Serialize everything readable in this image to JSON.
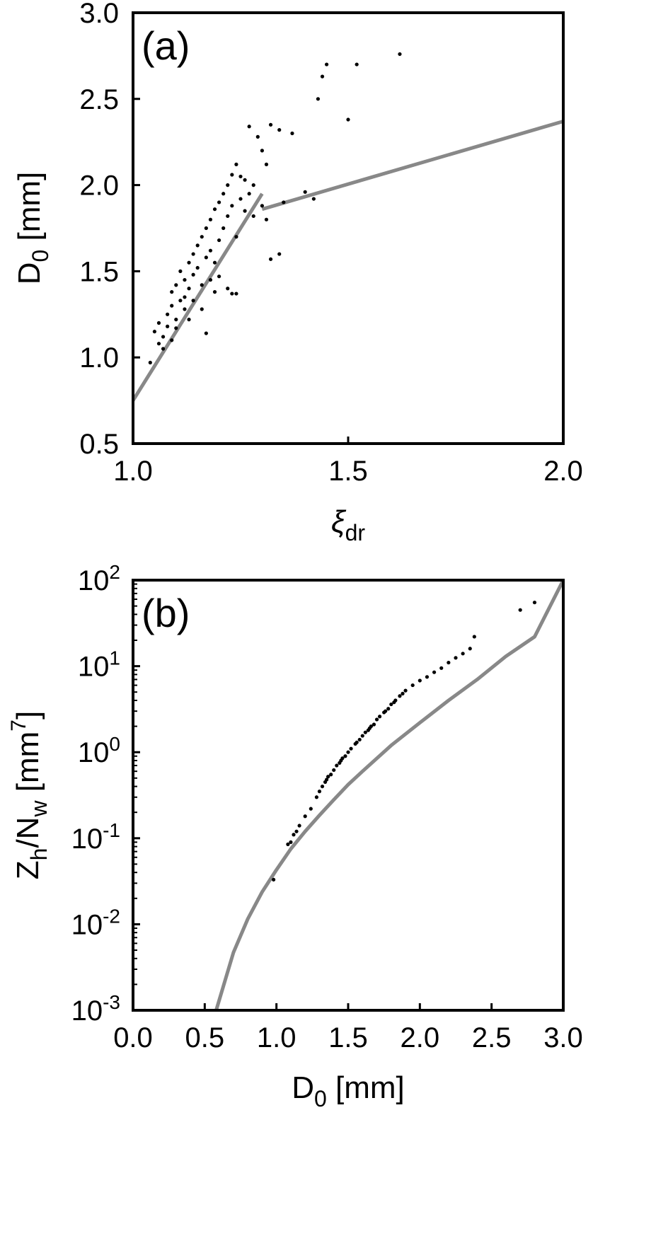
{
  "chart_data": [
    {
      "type": "scatter",
      "panel_label": "(a)",
      "xlabel": "ξdr",
      "xlabel_main": "ξ",
      "xlabel_sub": "dr",
      "ylabel": "D0 [mm]",
      "ylabel_main": "D",
      "ylabel_sub": "0",
      "ylabel_rest": " [mm]",
      "xlim": [
        1.0,
        2.0
      ],
      "ylim": [
        0.5,
        3.0
      ],
      "x_ticks": [
        1.0,
        1.5,
        2.0
      ],
      "x_tick_labels": [
        "1.0",
        "1.5",
        "2.0"
      ],
      "y_ticks": [
        0.5,
        1.0,
        1.5,
        2.0,
        2.5,
        3.0
      ],
      "y_tick_labels": [
        "0.5",
        "1.0",
        "1.5",
        "2.0",
        "2.5",
        "3.0"
      ],
      "grid": false,
      "fit_lines": [
        {
          "x": [
            1.0,
            1.3
          ],
          "y": [
            0.75,
            1.95
          ],
          "color": "#888888"
        },
        {
          "x": [
            1.3,
            2.0
          ],
          "y": [
            1.86,
            2.37
          ],
          "color": "#888888"
        }
      ],
      "points": [
        [
          1.04,
          0.97
        ],
        [
          1.06,
          1.08
        ],
        [
          1.07,
          1.12
        ],
        [
          1.08,
          1.18
        ],
        [
          1.08,
          1.25
        ],
        [
          1.09,
          1.3
        ],
        [
          1.09,
          1.38
        ],
        [
          1.1,
          1.42
        ],
        [
          1.1,
          1.22
        ],
        [
          1.11,
          1.5
        ],
        [
          1.11,
          1.33
        ],
        [
          1.12,
          1.28
        ],
        [
          1.12,
          1.45
        ],
        [
          1.13,
          1.55
        ],
        [
          1.13,
          1.4
        ],
        [
          1.14,
          1.6
        ],
        [
          1.14,
          1.48
        ],
        [
          1.15,
          1.65
        ],
        [
          1.15,
          1.52
        ],
        [
          1.16,
          1.7
        ],
        [
          1.16,
          1.42
        ],
        [
          1.17,
          1.75
        ],
        [
          1.17,
          1.58
        ],
        [
          1.18,
          1.8
        ],
        [
          1.18,
          1.62
        ],
        [
          1.19,
          1.86
        ],
        [
          1.19,
          1.55
        ],
        [
          1.2,
          1.9
        ],
        [
          1.2,
          1.68
        ],
        [
          1.21,
          1.95
        ],
        [
          1.21,
          1.75
        ],
        [
          1.22,
          2.0
        ],
        [
          1.22,
          1.82
        ],
        [
          1.23,
          2.06
        ],
        [
          1.23,
          1.88
        ],
        [
          1.24,
          2.12
        ],
        [
          1.24,
          1.7
        ],
        [
          1.25,
          2.05
        ],
        [
          1.25,
          1.92
        ],
        [
          1.26,
          1.85
        ],
        [
          1.27,
          2.34
        ],
        [
          1.28,
          2.0
        ],
        [
          1.29,
          2.28
        ],
        [
          1.3,
          2.2
        ],
        [
          1.31,
          2.12
        ],
        [
          1.31,
          1.8
        ],
        [
          1.32,
          2.35
        ],
        [
          1.32,
          1.57
        ],
        [
          1.34,
          2.32
        ],
        [
          1.34,
          1.6
        ],
        [
          1.35,
          1.9
        ],
        [
          1.37,
          2.3
        ],
        [
          1.4,
          1.96
        ],
        [
          1.42,
          1.92
        ],
        [
          1.43,
          2.5
        ],
        [
          1.44,
          2.63
        ],
        [
          1.45,
          2.7
        ],
        [
          1.5,
          2.38
        ],
        [
          1.52,
          2.7
        ],
        [
          1.62,
          2.76
        ],
        [
          1.05,
          1.15
        ],
        [
          1.06,
          1.2
        ],
        [
          1.07,
          1.05
        ],
        [
          1.09,
          1.1
        ],
        [
          1.1,
          1.17
        ],
        [
          1.12,
          1.35
        ],
        [
          1.13,
          1.22
        ],
        [
          1.14,
          1.33
        ],
        [
          1.16,
          1.28
        ],
        [
          1.17,
          1.14
        ],
        [
          1.18,
          1.45
        ],
        [
          1.19,
          1.38
        ],
        [
          1.2,
          1.47
        ],
        [
          1.22,
          1.4
        ],
        [
          1.23,
          1.37
        ],
        [
          1.24,
          1.37
        ],
        [
          1.26,
          2.03
        ],
        [
          1.27,
          1.95
        ],
        [
          1.28,
          1.82
        ],
        [
          1.3,
          1.88
        ]
      ]
    },
    {
      "type": "scatter",
      "panel_label": "(b)",
      "xlabel": "D0 [mm]",
      "xlabel_main": "D",
      "xlabel_sub": "0",
      "xlabel_rest": " [mm]",
      "ylabel": "Zh/Nw [mm7]",
      "ylabel_p1": "Z",
      "ylabel_p1_sub": "h",
      "ylabel_p2": "/N",
      "ylabel_p2_sub": "w",
      "ylabel_p3": " [mm",
      "ylabel_p3_sup": "7",
      "ylabel_p4": "]",
      "xlim": [
        0.0,
        3.0
      ],
      "ylim": [
        0.001,
        100
      ],
      "y_scale": "log",
      "x_ticks": [
        0.0,
        0.5,
        1.0,
        1.5,
        2.0,
        2.5,
        3.0
      ],
      "x_tick_labels": [
        "0.0",
        "0.5",
        "1.0",
        "1.5",
        "2.0",
        "2.5",
        "3.0"
      ],
      "y_ticks": [
        0.001,
        0.01,
        0.1,
        1,
        10,
        100
      ],
      "y_tick_base": "10",
      "y_tick_exps": [
        "-3",
        "-2",
        "-1",
        "0",
        "1",
        "2"
      ],
      "grid": false,
      "fit_curve": {
        "x": [
          0.58,
          0.7,
          0.8,
          0.9,
          1.0,
          1.1,
          1.2,
          1.3,
          1.4,
          1.5,
          1.6,
          1.8,
          2.0,
          2.2,
          2.4,
          2.6,
          2.8,
          3.0
        ],
        "y": [
          0.001,
          0.0047,
          0.0115,
          0.0237,
          0.043,
          0.075,
          0.12,
          0.185,
          0.28,
          0.42,
          0.6,
          1.2,
          2.2,
          4.0,
          7.0,
          13.0,
          22.0,
          100.0
        ],
        "color": "#888888"
      },
      "points": [
        [
          0.98,
          0.033
        ],
        [
          1.08,
          0.085
        ],
        [
          1.1,
          0.09
        ],
        [
          1.12,
          0.11
        ],
        [
          1.14,
          0.12
        ],
        [
          1.16,
          0.14
        ],
        [
          1.2,
          0.18
        ],
        [
          1.24,
          0.22
        ],
        [
          1.28,
          0.3
        ],
        [
          1.3,
          0.35
        ],
        [
          1.32,
          0.4
        ],
        [
          1.35,
          0.48
        ],
        [
          1.38,
          0.55
        ],
        [
          1.4,
          0.62
        ],
        [
          1.42,
          0.7
        ],
        [
          1.45,
          0.8
        ],
        [
          1.48,
          0.9
        ],
        [
          1.5,
          1.0
        ],
        [
          1.52,
          1.1
        ],
        [
          1.55,
          1.25
        ],
        [
          1.58,
          1.4
        ],
        [
          1.6,
          1.55
        ],
        [
          1.62,
          1.7
        ],
        [
          1.65,
          1.9
        ],
        [
          1.68,
          2.1
        ],
        [
          1.7,
          2.4
        ],
        [
          1.72,
          2.6
        ],
        [
          1.75,
          2.9
        ],
        [
          1.78,
          3.2
        ],
        [
          1.8,
          3.6
        ],
        [
          1.83,
          4.0
        ],
        [
          1.86,
          4.5
        ],
        [
          1.9,
          5.2
        ],
        [
          1.95,
          6.0
        ],
        [
          2.0,
          6.8
        ],
        [
          2.05,
          7.5
        ],
        [
          2.1,
          8.5
        ],
        [
          2.15,
          9.5
        ],
        [
          2.2,
          11.0
        ],
        [
          2.25,
          12.5
        ],
        [
          2.3,
          14.0
        ],
        [
          2.35,
          16.0
        ],
        [
          2.38,
          22.0
        ],
        [
          2.7,
          45.0
        ],
        [
          2.8,
          55.0
        ],
        [
          1.34,
          0.45
        ],
        [
          1.36,
          0.52
        ],
        [
          1.44,
          0.75
        ],
        [
          1.46,
          0.85
        ],
        [
          1.56,
          1.3
        ],
        [
          1.64,
          1.8
        ],
        [
          1.66,
          2.0
        ],
        [
          1.76,
          3.0
        ],
        [
          1.82,
          3.8
        ],
        [
          1.88,
          4.8
        ]
      ]
    }
  ]
}
